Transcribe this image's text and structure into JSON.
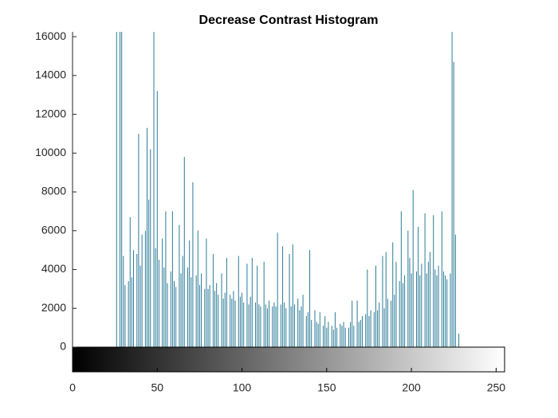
{
  "chart_data": {
    "type": "stem",
    "title": "Decrease Contrast Histogram",
    "color": "#2b7b98",
    "x": [
      26,
      27,
      28,
      29,
      30,
      31,
      32,
      33,
      34,
      35,
      36,
      37,
      38,
      39,
      40,
      41,
      42,
      43,
      44,
      45,
      46,
      47,
      48,
      49,
      50,
      51,
      52,
      53,
      54,
      55,
      56,
      57,
      58,
      59,
      60,
      61,
      62,
      63,
      64,
      65,
      66,
      67,
      68,
      69,
      70,
      71,
      72,
      73,
      74,
      75,
      76,
      77,
      78,
      79,
      80,
      81,
      82,
      83,
      84,
      85,
      86,
      87,
      88,
      89,
      90,
      91,
      92,
      93,
      94,
      95,
      96,
      97,
      98,
      99,
      100,
      101,
      102,
      103,
      104,
      105,
      106,
      107,
      108,
      109,
      110,
      111,
      112,
      113,
      114,
      115,
      116,
      117,
      118,
      119,
      120,
      121,
      122,
      123,
      124,
      125,
      126,
      127,
      128,
      129,
      130,
      131,
      132,
      133,
      134,
      135,
      136,
      137,
      138,
      139,
      140,
      141,
      142,
      143,
      144,
      145,
      146,
      147,
      148,
      149,
      150,
      151,
      152,
      153,
      154,
      155,
      156,
      157,
      158,
      159,
      160,
      161,
      162,
      163,
      164,
      165,
      166,
      167,
      168,
      169,
      170,
      171,
      172,
      173,
      174,
      175,
      176,
      177,
      178,
      179,
      180,
      181,
      182,
      183,
      184,
      185,
      186,
      187,
      188,
      189,
      190,
      191,
      192,
      193,
      194,
      195,
      196,
      197,
      198,
      199,
      200,
      201,
      202,
      203,
      204,
      205,
      206,
      207,
      208,
      209,
      210,
      211,
      212,
      213,
      214,
      215,
      216,
      217,
      218,
      219,
      220,
      221,
      222,
      223,
      224,
      225,
      226,
      227,
      228
    ],
    "values": [
      17500,
      0,
      16900,
      17200,
      4700,
      3200,
      0,
      3400,
      6700,
      3600,
      5000,
      0,
      4800,
      11000,
      4200,
      5800,
      0,
      6000,
      11300,
      7600,
      10200,
      0,
      17000,
      5100,
      13200,
      4500,
      0,
      5600,
      4100,
      7000,
      3300,
      0,
      3900,
      7000,
      3400,
      3100,
      0,
      6300,
      3800,
      4700,
      9800,
      0,
      4100,
      5500,
      3600,
      8500,
      0,
      3700,
      6000,
      3200,
      3800,
      0,
      3000,
      5600,
      3000,
      3200,
      0,
      4800,
      2900,
      3300,
      2700,
      0,
      3800,
      2500,
      2800,
      4600,
      0,
      2700,
      2500,
      2900,
      2400,
      0,
      4700,
      2600,
      2800,
      2300,
      0,
      4300,
      2200,
      2600,
      4600,
      0,
      2300,
      4200,
      2200,
      2100,
      0,
      4400,
      2200,
      2000,
      2400,
      0,
      2100,
      2300,
      2100,
      5900,
      0,
      2200,
      5200,
      2300,
      2000,
      0,
      4800,
      2100,
      5300,
      2200,
      0,
      2500,
      1900,
      2100,
      2700,
      0,
      1600,
      1800,
      5000,
      1400,
      0,
      1900,
      1300,
      1200,
      1800,
      0,
      1100,
      1600,
      1000,
      1300,
      0,
      1100,
      900,
      1800,
      1000,
      0,
      1200,
      1100,
      1300,
      1000,
      0,
      1000,
      1300,
      2400,
      1100,
      0,
      2400,
      1300,
      1400,
      1600,
      0,
      1700,
      4000,
      1600,
      1900,
      0,
      1800,
      4200,
      1900,
      2300,
      0,
      4700,
      2000,
      4900,
      2500,
      0,
      2400,
      5400,
      2700,
      4400,
      0,
      3400,
      7000,
      3300,
      3700,
      0,
      6000,
      4600,
      3800,
      8100,
      0,
      3900,
      6200,
      3700,
      4300,
      0,
      6900,
      3800,
      4400,
      4900,
      0,
      6800,
      4000,
      3700,
      4200,
      0,
      7000,
      3900,
      3700,
      3500,
      0,
      3800,
      17500,
      14700,
      5800,
      0,
      700
    ],
    "xlim": [
      0,
      255
    ],
    "xticks": [
      0,
      50,
      100,
      150,
      200,
      250
    ],
    "ylim": [
      0,
      16250
    ],
    "yticks": [
      0,
      2000,
      4000,
      6000,
      8000,
      10000,
      12000,
      14000,
      16000
    ]
  }
}
